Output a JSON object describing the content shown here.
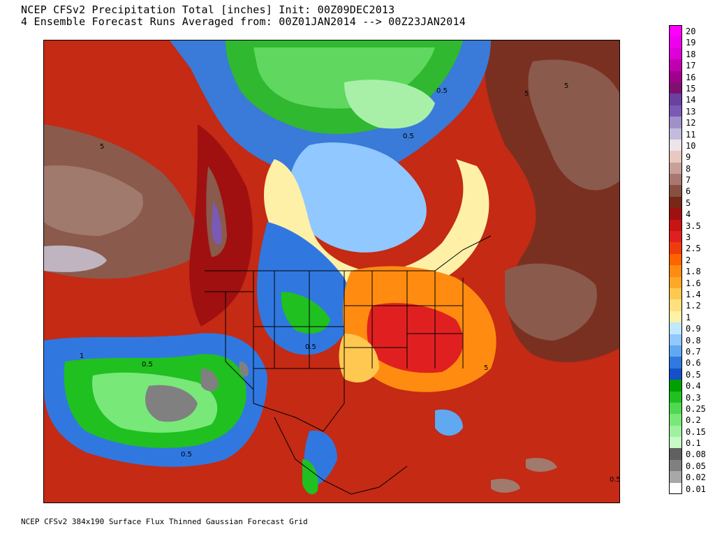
{
  "header": {
    "line1": "NCEP CFSv2 Precipitation Total [inches] Init: 00Z09DEC2013",
    "line2": "4 Ensemble Forecast Runs Averaged from: 00Z01JAN2014 --> 00Z23JAN2014"
  },
  "footer": {
    "text": "NCEP CFSv2 384x190 Surface Flux Thinned Gaussian Forecast Grid"
  },
  "legend": {
    "items": [
      {
        "label": "20",
        "color": "#ff00ff"
      },
      {
        "label": "19",
        "color": "#ee00ee"
      },
      {
        "label": "18",
        "color": "#dd00d8"
      },
      {
        "label": "17",
        "color": "#c000b0"
      },
      {
        "label": "16",
        "color": "#a00090"
      },
      {
        "label": "15",
        "color": "#801070"
      },
      {
        "label": "14",
        "color": "#6a40a0"
      },
      {
        "label": "13",
        "color": "#7a5ab4"
      },
      {
        "label": "12",
        "color": "#a090c8"
      },
      {
        "label": "11",
        "color": "#c4bcdc"
      },
      {
        "label": "10",
        "color": "#ece4e8"
      },
      {
        "label": "9",
        "color": "#e8c8c0"
      },
      {
        "label": "8",
        "color": "#c8a098"
      },
      {
        "label": "7",
        "color": "#a87870"
      },
      {
        "label": "6",
        "color": "#885040"
      },
      {
        "label": "5",
        "color": "#782818"
      },
      {
        "label": "4",
        "color": "#a01010"
      },
      {
        "label": "3.5",
        "color": "#c81414"
      },
      {
        "label": "3",
        "color": "#e02020"
      },
      {
        "label": "2.5",
        "color": "#f03c0c"
      },
      {
        "label": "2",
        "color": "#ff6400"
      },
      {
        "label": "1.8",
        "color": "#ff8c10"
      },
      {
        "label": "1.6",
        "color": "#ffa828"
      },
      {
        "label": "1.4",
        "color": "#ffc850"
      },
      {
        "label": "1.2",
        "color": "#ffe07c"
      },
      {
        "label": "1",
        "color": "#fff0a8"
      },
      {
        "label": "0.9",
        "color": "#c0e8ff"
      },
      {
        "label": "0.8",
        "color": "#90c8ff"
      },
      {
        "label": "0.7",
        "color": "#60a8f0"
      },
      {
        "label": "0.6",
        "color": "#3078e0"
      },
      {
        "label": "0.5",
        "color": "#1450c8"
      },
      {
        "label": "0.4",
        "color": "#00a000"
      },
      {
        "label": "0.3",
        "color": "#20c020"
      },
      {
        "label": "0.25",
        "color": "#50d850"
      },
      {
        "label": "0.2",
        "color": "#78e878"
      },
      {
        "label": "0.15",
        "color": "#a0f0a0"
      },
      {
        "label": "0.1",
        "color": "#c8fac8"
      },
      {
        "label": "0.08",
        "color": "#606060"
      },
      {
        "label": "0.05",
        "color": "#808080"
      },
      {
        "label": "0.02",
        "color": "#a8a8a8"
      },
      {
        "label": "0.01",
        "color": "#ffffff"
      }
    ]
  },
  "map": {
    "contour_labels": [
      "5",
      "0.5",
      "5",
      "5",
      "1",
      "0.5",
      "0.5",
      "0.5",
      "0.5",
      "5",
      "0.5"
    ]
  }
}
